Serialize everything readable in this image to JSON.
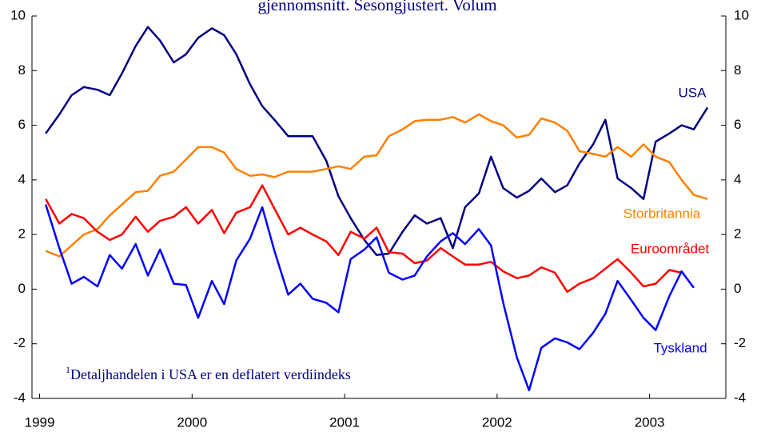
{
  "chart_data": {
    "type": "line",
    "title": "gjennomsnitt. Sesongjustert. Volum",
    "footnote_marker": "1",
    "footnote": "Detaljhandelen i USA er en deflatert verdiindeks",
    "x": [
      1999.04,
      1999.13,
      1999.21,
      1999.29,
      1999.38,
      1999.46,
      1999.54,
      1999.63,
      1999.71,
      1999.79,
      1999.88,
      1999.96,
      2000.04,
      2000.13,
      2000.21,
      2000.29,
      2000.38,
      2000.46,
      2000.54,
      2000.63,
      2000.71,
      2000.79,
      2000.88,
      2000.96,
      2001.04,
      2001.13,
      2001.21,
      2001.29,
      2001.38,
      2001.46,
      2001.54,
      2001.63,
      2001.71,
      2001.79,
      2001.88,
      2001.96,
      2002.04,
      2002.13,
      2002.21,
      2002.29,
      2002.38,
      2002.46,
      2002.54,
      2002.63,
      2002.71,
      2002.79,
      2002.88,
      2002.96,
      2003.04,
      2003.13,
      2003.21,
      2003.29,
      2003.38
    ],
    "xlim": [
      1998.95,
      2003.5
    ],
    "xticks": [
      1999,
      2000,
      2001,
      2002,
      2003
    ],
    "ylim": [
      -4,
      10
    ],
    "yticks": [
      -4,
      -2,
      0,
      2,
      4,
      6,
      8,
      10
    ],
    "series": [
      {
        "name": "USA",
        "color": "#000080",
        "values": [
          5.7,
          6.4,
          7.1,
          7.4,
          7.3,
          7.1,
          7.9,
          8.9,
          9.6,
          9.1,
          8.3,
          8.6,
          9.2,
          9.55,
          9.3,
          8.6,
          7.5,
          6.7,
          6.2,
          5.6,
          5.6,
          5.6,
          4.7,
          3.4,
          2.6,
          1.8,
          1.25,
          1.3,
          2.1,
          2.7,
          2.4,
          2.6,
          1.5,
          3.0,
          3.5,
          4.85,
          3.7,
          3.35,
          3.6,
          4.05,
          3.55,
          3.8,
          4.6,
          5.3,
          6.2,
          4.05,
          3.7,
          3.3,
          5.4,
          5.7,
          6.0,
          5.85,
          6.65
        ]
      },
      {
        "name": "Storbritannia",
        "color": "#ff8000",
        "values": [
          1.4,
          1.2,
          1.6,
          2.0,
          2.2,
          2.7,
          3.1,
          3.55,
          3.6,
          4.15,
          4.3,
          4.75,
          5.2,
          5.2,
          5.0,
          4.4,
          4.15,
          4.2,
          4.1,
          4.3,
          4.3,
          4.3,
          4.4,
          4.5,
          4.4,
          4.85,
          4.9,
          5.6,
          5.85,
          6.15,
          6.2,
          6.2,
          6.3,
          6.1,
          6.4,
          6.15,
          6.0,
          5.55,
          5.65,
          6.25,
          6.1,
          5.8,
          5.05,
          4.95,
          4.85,
          5.2,
          4.85,
          5.3,
          4.85,
          4.65,
          4.0,
          3.45,
          3.3
        ]
      },
      {
        "name": "Euroområdet",
        "color": "#ff0000",
        "values": [
          3.3,
          2.4,
          2.75,
          2.6,
          2.1,
          1.8,
          2.0,
          2.65,
          2.1,
          2.5,
          2.65,
          3.0,
          2.4,
          2.9,
          2.05,
          2.8,
          3.0,
          3.8,
          2.95,
          2.0,
          2.25,
          2.0,
          1.75,
          1.25,
          2.1,
          1.85,
          2.25,
          1.35,
          1.3,
          0.95,
          1.05,
          1.5,
          1.2,
          0.9,
          0.9,
          1.0,
          0.65,
          0.4,
          0.5,
          0.8,
          0.6,
          -0.1,
          0.2,
          0.4,
          0.75,
          1.1,
          0.6,
          0.1,
          0.2,
          0.7,
          0.6,
          null,
          null
        ]
      },
      {
        "name": "Tyskland",
        "color": "#0000ff",
        "values": [
          3.1,
          1.5,
          0.2,
          0.45,
          0.1,
          1.25,
          0.75,
          1.65,
          0.5,
          1.45,
          0.2,
          0.15,
          -1.05,
          0.3,
          -0.55,
          1.05,
          1.85,
          3.0,
          1.4,
          -0.2,
          0.2,
          -0.35,
          -0.5,
          -0.85,
          1.1,
          1.45,
          1.9,
          0.6,
          0.35,
          0.5,
          1.2,
          1.75,
          2.05,
          1.65,
          2.2,
          1.6,
          -0.5,
          -2.5,
          -3.7,
          -2.15,
          -1.8,
          -1.95,
          -2.2,
          -1.6,
          -0.9,
          0.3,
          -0.4,
          -1.05,
          -1.5,
          -0.25,
          0.65,
          0.05,
          null
        ]
      }
    ]
  }
}
